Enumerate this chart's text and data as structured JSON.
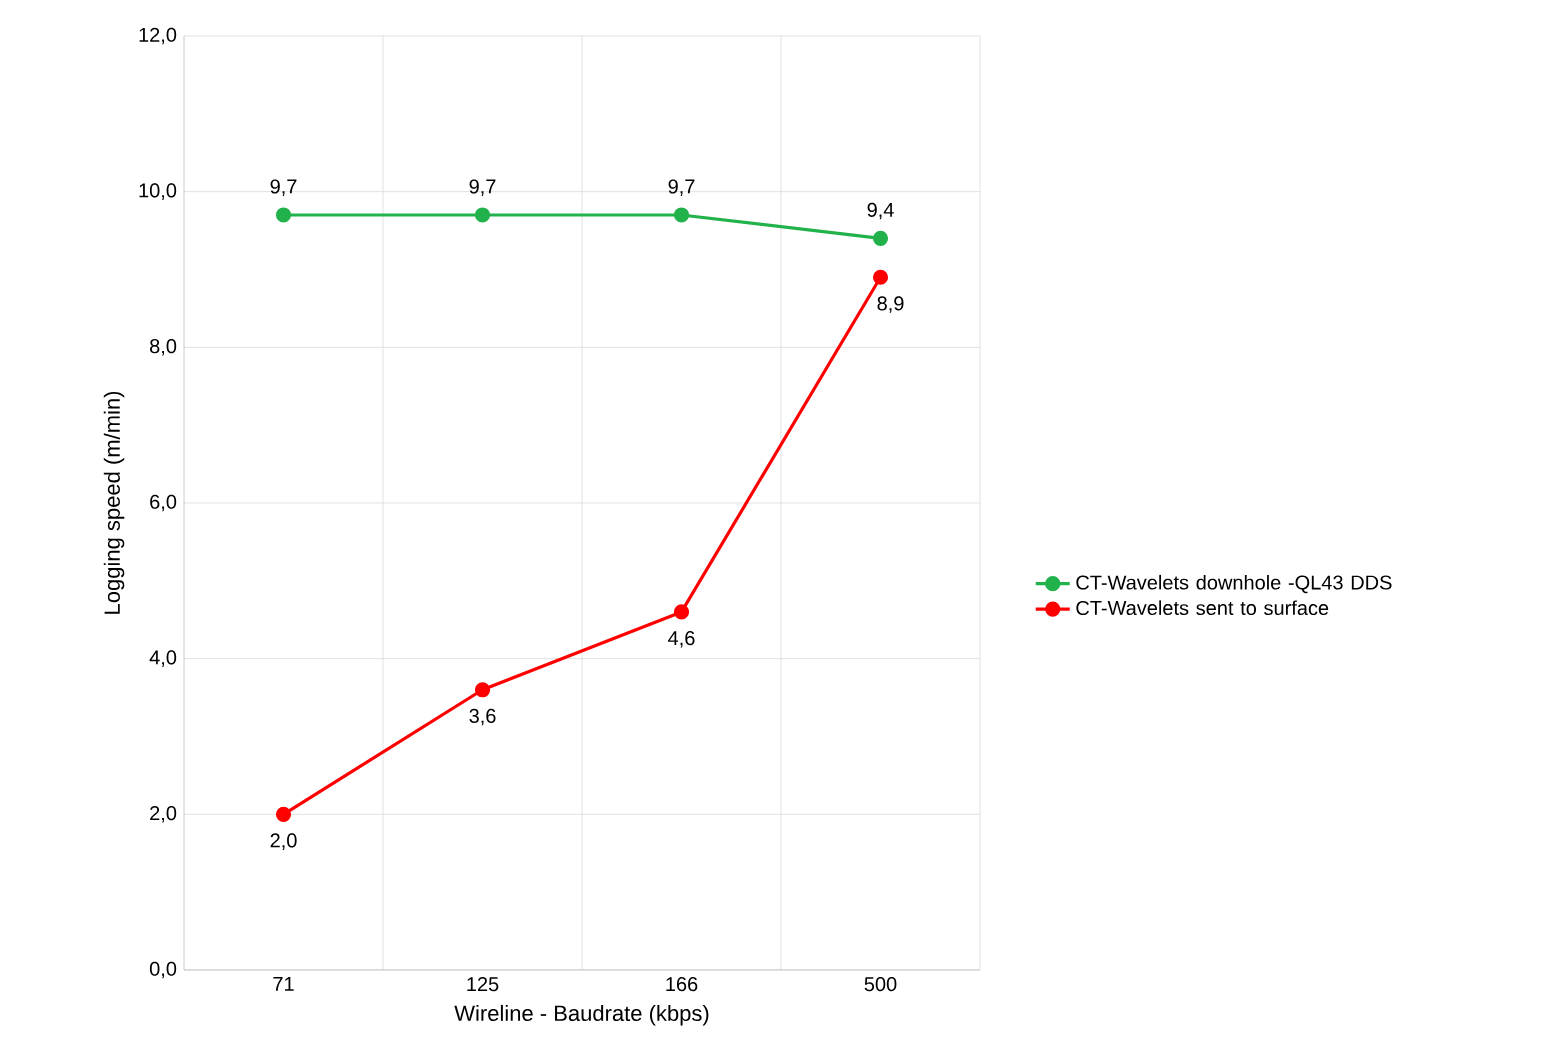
{
  "chart_data": {
    "type": "line",
    "xlabel": "Wireline - Baudrate (kbps)",
    "ylabel": "Logging speed (m/min)",
    "categories": [
      "71",
      "125",
      "166",
      "500"
    ],
    "series": [
      {
        "name": "CT-Wavelets downhole -QL43 DDS",
        "color": "#22b24c",
        "values": [
          9.7,
          9.7,
          9.7,
          9.4
        ],
        "value_labels": [
          "9,7",
          "9,7",
          "9,7",
          "9,4"
        ]
      },
      {
        "name": "CT-Wavelets sent to surface",
        "color": "#ff0000",
        "values": [
          2.0,
          3.6,
          4.6,
          8.9
        ],
        "value_labels": [
          "2,0",
          "3,6",
          "4,6",
          "8,9"
        ]
      }
    ],
    "ylim": [
      0,
      12
    ],
    "yticks": [
      {
        "value": 0,
        "label": "0,0"
      },
      {
        "value": 2,
        "label": "2,0"
      },
      {
        "value": 4,
        "label": "4,0"
      },
      {
        "value": 6,
        "label": "6,0"
      },
      {
        "value": 8,
        "label": "8,0"
      },
      {
        "value": 10,
        "label": "10,0"
      },
      {
        "value": 12,
        "label": "12,0"
      }
    ],
    "grid": true,
    "legend": "right",
    "marker": "circle",
    "line_style": "solid"
  }
}
